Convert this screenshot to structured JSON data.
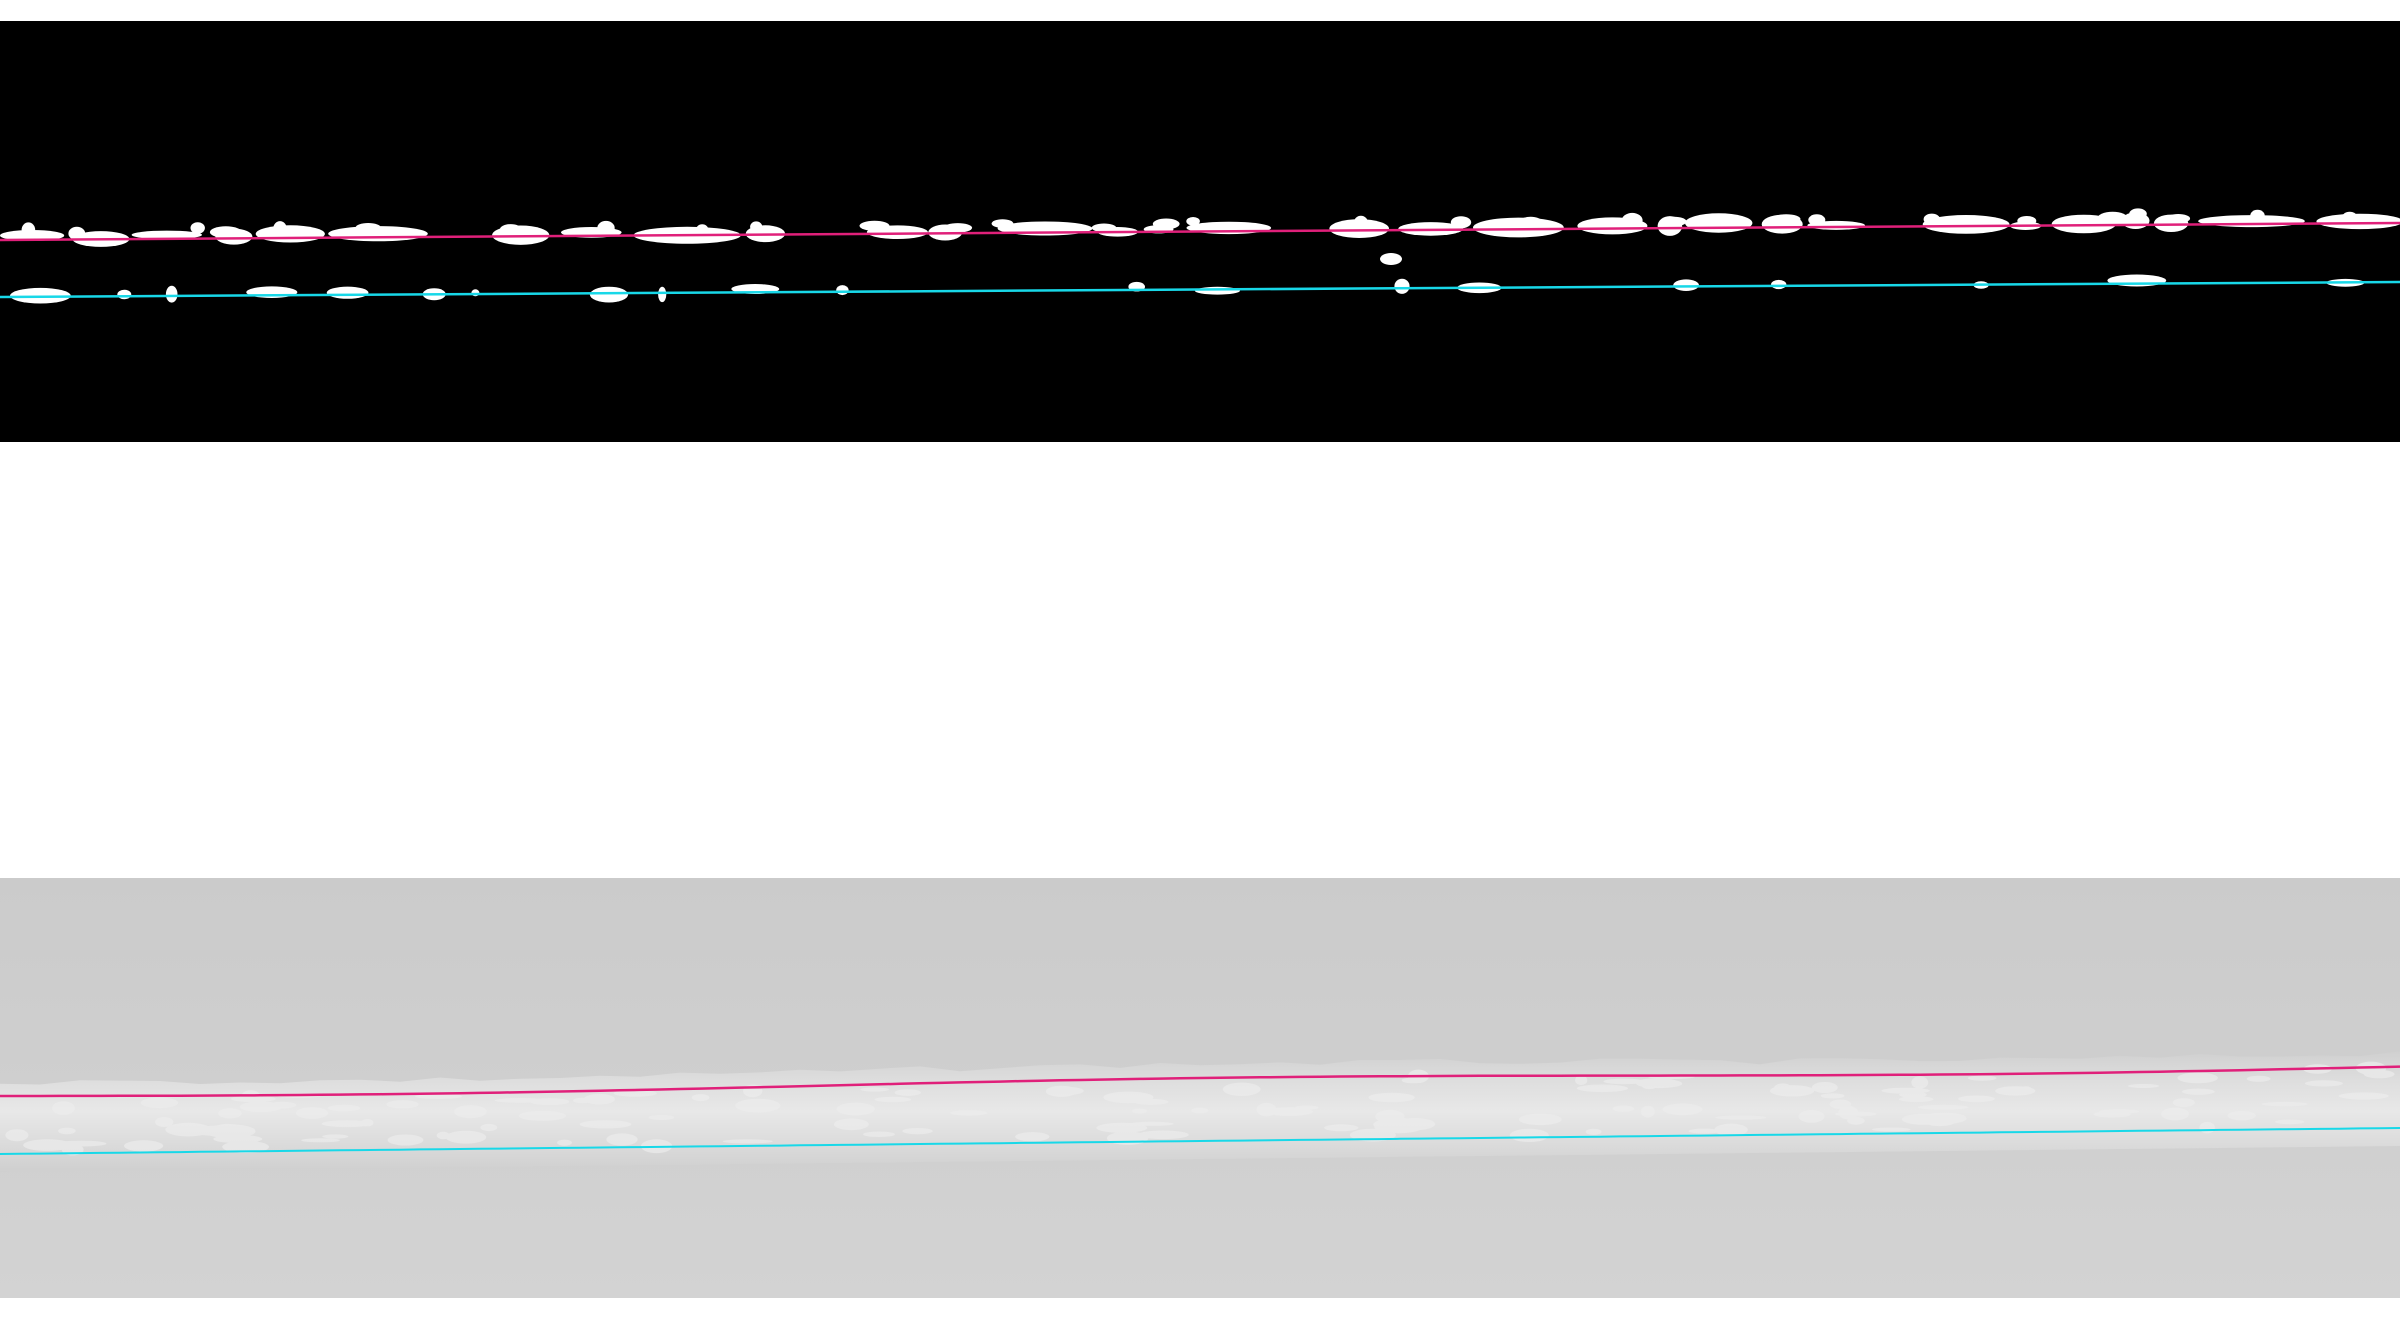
{
  "panels": [
    {
      "kind": "binary-mask",
      "background": "#000000",
      "blob_color": "#ffffff"
    },
    {
      "kind": "grayscale-image",
      "background": "#cfcfcf",
      "band_color": "#e6e6e6"
    }
  ],
  "traces": {
    "upper": {
      "color": "#e0207a"
    },
    "lower": {
      "color": "#18d8e8"
    }
  }
}
